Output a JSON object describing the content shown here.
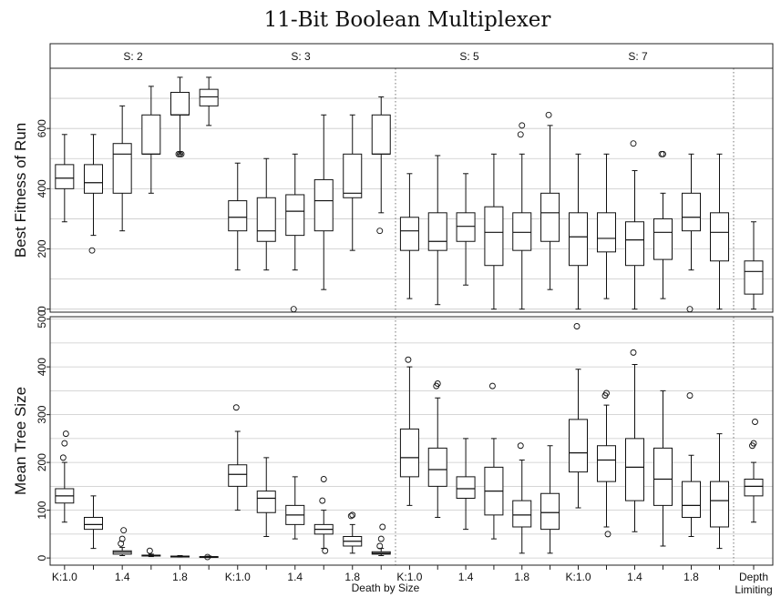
{
  "chart_data": {
    "type": "boxplot",
    "title": "11-Bit Boolean Multiplexer",
    "xlabel": "Death by Size",
    "groups": [
      {
        "strip": "S: 2",
        "tick_labels": [
          "K:1.0",
          "",
          "1.4",
          "",
          "1.8",
          ""
        ]
      },
      {
        "strip": "S: 3",
        "tick_labels": [
          "K:1.0",
          "",
          "1.4",
          "",
          "1.8",
          ""
        ]
      },
      {
        "strip": "S: 5",
        "tick_labels": [
          "K:1.0",
          "",
          "1.4",
          "",
          "1.8",
          ""
        ]
      },
      {
        "strip": "S: 7",
        "tick_labels": [
          "K:1.0",
          "",
          "1.4",
          "",
          "1.8",
          ""
        ]
      },
      {
        "strip": "",
        "tick_labels": [
          "Depth\nLimiting"
        ]
      }
    ],
    "panels": [
      {
        "ylabel": "Best Fitness of Run",
        "ylim": [
          -10,
          800
        ],
        "yticks": [
          0,
          200,
          400,
          600
        ],
        "grid": true,
        "boxes": [
          [
            {
              "min": 290,
              "q1": 400,
              "median": 435,
              "q3": 480,
              "max": 580,
              "outliers": []
            },
            {
              "min": 245,
              "q1": 385,
              "median": 420,
              "q3": 480,
              "max": 580,
              "outliers": [
                195
              ]
            },
            {
              "min": 260,
              "q1": 385,
              "median": 515,
              "q3": 550,
              "max": 675,
              "outliers": []
            },
            {
              "min": 385,
              "q1": 515,
              "median": 515,
              "q3": 645,
              "max": 740,
              "outliers": []
            },
            {
              "min": 515,
              "q1": 645,
              "median": 645,
              "q3": 720,
              "max": 770,
              "outliers": [
                515,
                515,
                515
              ]
            },
            {
              "min": 610,
              "q1": 675,
              "median": 705,
              "q3": 730,
              "max": 770,
              "outliers": []
            }
          ],
          [
            {
              "min": 130,
              "q1": 260,
              "median": 305,
              "q3": 360,
              "max": 485,
              "outliers": []
            },
            {
              "min": 130,
              "q1": 225,
              "median": 260,
              "q3": 370,
              "max": 500,
              "outliers": []
            },
            {
              "min": 130,
              "q1": 245,
              "median": 325,
              "q3": 380,
              "max": 515,
              "outliers": [
                0
              ]
            },
            {
              "min": 65,
              "q1": 260,
              "median": 360,
              "q3": 430,
              "max": 645,
              "outliers": []
            },
            {
              "min": 195,
              "q1": 370,
              "median": 385,
              "q3": 515,
              "max": 645,
              "outliers": []
            },
            {
              "min": 320,
              "q1": 515,
              "median": 515,
              "q3": 645,
              "max": 705,
              "outliers": [
                260
              ]
            }
          ],
          [
            {
              "min": 35,
              "q1": 195,
              "median": 260,
              "q3": 305,
              "max": 450,
              "outliers": []
            },
            {
              "min": 15,
              "q1": 195,
              "median": 225,
              "q3": 320,
              "max": 510,
              "outliers": []
            },
            {
              "min": 80,
              "q1": 225,
              "median": 275,
              "q3": 320,
              "max": 450,
              "outliers": []
            },
            {
              "min": 0,
              "q1": 145,
              "median": 255,
              "q3": 340,
              "max": 515,
              "outliers": []
            },
            {
              "min": 0,
              "q1": 195,
              "median": 255,
              "q3": 320,
              "max": 515,
              "outliers": [
                580,
                610
              ]
            },
            {
              "min": 65,
              "q1": 225,
              "median": 320,
              "q3": 385,
              "max": 610,
              "outliers": [
                645
              ]
            }
          ],
          [
            {
              "min": 0,
              "q1": 145,
              "median": 240,
              "q3": 320,
              "max": 515,
              "outliers": []
            },
            {
              "min": 35,
              "q1": 190,
              "median": 235,
              "q3": 320,
              "max": 515,
              "outliers": []
            },
            {
              "min": 0,
              "q1": 145,
              "median": 230,
              "q3": 290,
              "max": 460,
              "outliers": [
                550
              ]
            },
            {
              "min": 35,
              "q1": 165,
              "median": 255,
              "q3": 300,
              "max": 385,
              "outliers": [
                515,
                515
              ]
            },
            {
              "min": 130,
              "q1": 260,
              "median": 305,
              "q3": 385,
              "max": 515,
              "outliers": [
                0
              ]
            },
            {
              "min": 0,
              "q1": 160,
              "median": 255,
              "q3": 320,
              "max": 515,
              "outliers": []
            }
          ],
          [
            {
              "min": 0,
              "q1": 50,
              "median": 125,
              "q3": 160,
              "max": 290,
              "outliers": []
            }
          ]
        ]
      },
      {
        "ylabel": "Mean Tree Size",
        "ylim": [
          -15,
          505
        ],
        "yticks": [
          0,
          100,
          200,
          300,
          400,
          500
        ],
        "grid": true,
        "boxes": [
          [
            {
              "min": 75,
              "q1": 115,
              "median": 130,
              "q3": 145,
              "max": 200,
              "outliers": [
                210,
                240,
                260
              ]
            },
            {
              "min": 20,
              "q1": 60,
              "median": 70,
              "q3": 85,
              "max": 130,
              "outliers": []
            },
            {
              "min": 5,
              "q1": 8,
              "median": 12,
              "q3": 15,
              "max": 22,
              "outliers": [
                30,
                40,
                58
              ]
            },
            {
              "min": 3,
              "q1": 5,
              "median": 5,
              "q3": 6,
              "max": 8,
              "outliers": [
                15
              ]
            },
            {
              "min": 2,
              "q1": 3,
              "median": 3,
              "q3": 4,
              "max": 5,
              "outliers": []
            },
            {
              "min": 1,
              "q1": 2,
              "median": 2,
              "q3": 3,
              "max": 4,
              "outliers": [
                2
              ]
            }
          ],
          [
            {
              "min": 100,
              "q1": 150,
              "median": 175,
              "q3": 195,
              "max": 265,
              "outliers": [
                315
              ]
            },
            {
              "min": 45,
              "q1": 95,
              "median": 125,
              "q3": 140,
              "max": 210,
              "outliers": []
            },
            {
              "min": 40,
              "q1": 70,
              "median": 90,
              "q3": 110,
              "max": 170,
              "outliers": []
            },
            {
              "min": 20,
              "q1": 50,
              "median": 60,
              "q3": 70,
              "max": 100,
              "outliers": [
                120,
                165,
                15
              ]
            },
            {
              "min": 10,
              "q1": 25,
              "median": 35,
              "q3": 45,
              "max": 70,
              "outliers": [
                88,
                90
              ]
            },
            {
              "min": 5,
              "q1": 8,
              "median": 10,
              "q3": 13,
              "max": 20,
              "outliers": [
                25,
                40,
                65
              ]
            }
          ],
          [
            {
              "min": 110,
              "q1": 170,
              "median": 210,
              "q3": 270,
              "max": 400,
              "outliers": [
                415
              ]
            },
            {
              "min": 85,
              "q1": 150,
              "median": 185,
              "q3": 230,
              "max": 335,
              "outliers": [
                360,
                365
              ]
            },
            {
              "min": 60,
              "q1": 125,
              "median": 145,
              "q3": 170,
              "max": 250,
              "outliers": []
            },
            {
              "min": 40,
              "q1": 90,
              "median": 140,
              "q3": 190,
              "max": 250,
              "outliers": [
                360
              ]
            },
            {
              "min": 10,
              "q1": 65,
              "median": 90,
              "q3": 120,
              "max": 205,
              "outliers": [
                235
              ]
            },
            {
              "min": 10,
              "q1": 60,
              "median": 95,
              "q3": 135,
              "max": 235,
              "outliers": []
            }
          ],
          [
            {
              "min": 105,
              "q1": 180,
              "median": 220,
              "q3": 290,
              "max": 395,
              "outliers": [
                485
              ]
            },
            {
              "min": 65,
              "q1": 160,
              "median": 205,
              "q3": 235,
              "max": 320,
              "outliers": [
                340,
                345,
                50
              ]
            },
            {
              "min": 55,
              "q1": 120,
              "median": 190,
              "q3": 250,
              "max": 405,
              "outliers": [
                430
              ]
            },
            {
              "min": 25,
              "q1": 110,
              "median": 165,
              "q3": 230,
              "max": 350,
              "outliers": []
            },
            {
              "min": 45,
              "q1": 85,
              "median": 110,
              "q3": 160,
              "max": 215,
              "outliers": [
                340
              ]
            },
            {
              "min": 20,
              "q1": 65,
              "median": 120,
              "q3": 160,
              "max": 260,
              "outliers": []
            }
          ],
          [
            {
              "min": 75,
              "q1": 130,
              "median": 150,
              "q3": 165,
              "max": 200,
              "outliers": [
                235,
                240,
                285
              ]
            }
          ]
        ]
      }
    ]
  }
}
